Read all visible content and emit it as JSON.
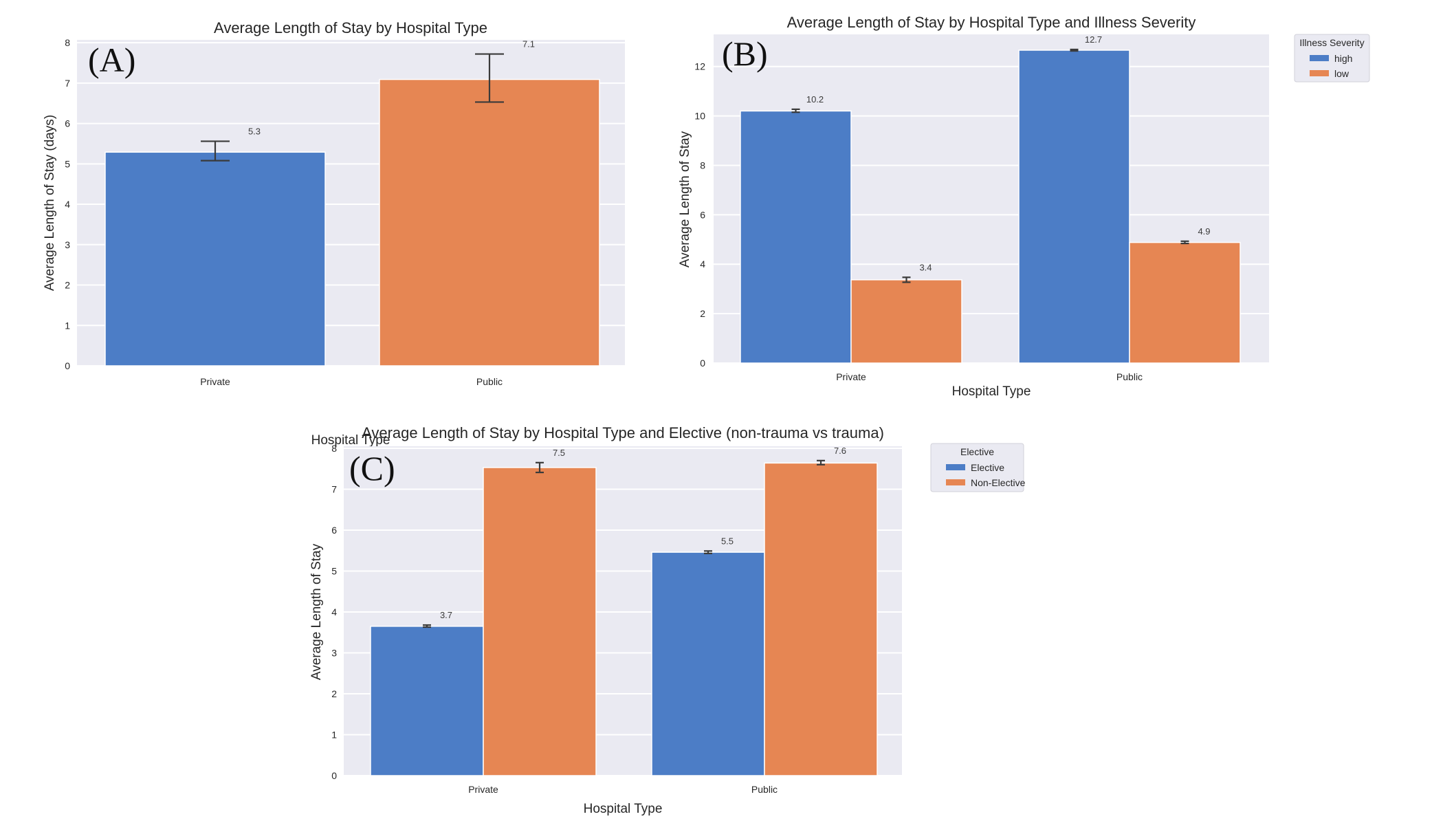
{
  "figure": {
    "panel_tags": [
      "(A)",
      "(B)",
      "(C)"
    ]
  },
  "colors": {
    "plot_bg": "#EAEAF2",
    "grid": "#FFFFFF",
    "blue": "#4C7DC6",
    "orange": "#E68653",
    "errbar": "#3a3a3a"
  },
  "chart_data": [
    {
      "id": "A",
      "type": "bar",
      "title": "Average Length of Stay by Hospital Type",
      "xlabel": "Hospital Type",
      "ylabel": "Average Length of Stay (days)",
      "categories": [
        "Private",
        "Public"
      ],
      "values": [
        5.29,
        7.09
      ],
      "error_low": [
        5.08,
        6.53
      ],
      "error_high": [
        5.56,
        7.72
      ],
      "bar_labels": [
        "5.3",
        "7.1"
      ],
      "bar_colors": [
        "blue",
        "orange"
      ],
      "ylim": [
        0,
        8.07
      ],
      "yticks": [
        "0",
        "1",
        "2",
        "3",
        "4",
        "5",
        "6",
        "7",
        "8"
      ],
      "grid": true,
      "legend": null
    },
    {
      "id": "B",
      "type": "bar",
      "title": "Average Length of Stay by Hospital Type and Illness Severity",
      "xlabel": "Hospital Type",
      "ylabel": "Average Length of Stay",
      "categories": [
        "Private",
        "Public"
      ],
      "series": [
        {
          "name": "high",
          "color": "blue",
          "values": [
            10.2,
            12.66
          ],
          "error_low": [
            10.15,
            12.63
          ],
          "error_high": [
            10.27,
            12.69
          ],
          "bar_labels": [
            "10.2",
            "12.7"
          ]
        },
        {
          "name": "low",
          "color": "orange",
          "values": [
            3.37,
            4.88
          ],
          "error_low": [
            3.27,
            4.84
          ],
          "error_high": [
            3.47,
            4.93
          ],
          "bar_labels": [
            "3.4",
            "4.9"
          ]
        }
      ],
      "ylim": [
        0,
        13.3
      ],
      "yticks": [
        "0",
        "2",
        "4",
        "6",
        "8",
        "10",
        "12"
      ],
      "grid": true,
      "legend": {
        "title": "Illness Severity",
        "placement": "outside-top-right"
      }
    },
    {
      "id": "C",
      "type": "bar",
      "title": "Average Length of Stay by Hospital Type and Elective (non-trauma vs trauma)",
      "xlabel": "Hospital Type",
      "ylabel": "Average Length of Stay",
      "categories": [
        "Private",
        "Public"
      ],
      "series": [
        {
          "name": "Elective",
          "color": "blue",
          "values": [
            3.65,
            5.46
          ],
          "error_low": [
            3.63,
            5.43
          ],
          "error_high": [
            3.68,
            5.49
          ],
          "bar_labels": [
            "3.7",
            "5.5"
          ]
        },
        {
          "name": "Non-Elective",
          "color": "orange",
          "values": [
            7.53,
            7.64
          ],
          "error_low": [
            7.41,
            7.6
          ],
          "error_high": [
            7.65,
            7.7
          ],
          "bar_labels": [
            "7.5",
            "7.6"
          ]
        }
      ],
      "ylim": [
        0,
        8.05
      ],
      "yticks": [
        "0",
        "1",
        "2",
        "3",
        "4",
        "5",
        "6",
        "7",
        "8"
      ],
      "grid": true,
      "legend": {
        "title": "Elective",
        "placement": "outside-top-right"
      }
    }
  ]
}
